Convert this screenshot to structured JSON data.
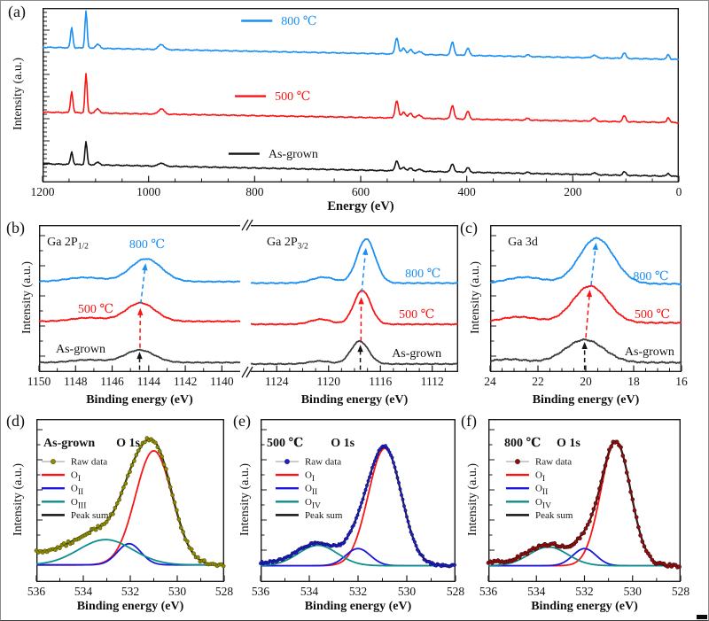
{
  "window": {
    "background": "#ffffff",
    "border_color": "#8a8a8a"
  },
  "colors": {
    "blue": "#1b8ff2",
    "red": "#f91515",
    "black": "#141414",
    "gray": "#3d3d3d",
    "teal": "#0e8d8d",
    "comp_blue": "#1717dd",
    "olive": "#8e8e00",
    "navy": "#2222cc",
    "darkred": "#8a1111"
  },
  "chart_data": [
    {
      "key": "a",
      "type": "line",
      "panel_letter": "(a)",
      "xlabel": "Energy (eV)",
      "ylabel": "Intensity (a.u.)",
      "x_range": [
        1200,
        0
      ],
      "x_ticks": [
        1200,
        1000,
        800,
        600,
        400,
        200,
        0
      ],
      "x_minor": 50,
      "frame": "full",
      "yticks": "dense",
      "lw": 1.6,
      "peaks": [
        [
          1145,
          2.2,
          0.115
        ],
        [
          1118,
          2.0,
          0.215
        ],
        [
          1096,
          4,
          0.022
        ],
        [
          976,
          5,
          0.03
        ],
        [
          532,
          3,
          0.095
        ],
        [
          519,
          3.5,
          0.034
        ],
        [
          506,
          3.5,
          0.026
        ],
        [
          490,
          5,
          0.016
        ],
        [
          427,
          3,
          0.075
        ],
        [
          398,
          3,
          0.042
        ],
        [
          285,
          3,
          0.01
        ],
        [
          160,
          4,
          0.016
        ],
        [
          103,
          3,
          0.032
        ],
        [
          20,
          2.5,
          0.028
        ]
      ],
      "series": [
        {
          "name": "800 ℃",
          "color": "blue",
          "baseline": 0.225,
          "slope": 0.07,
          "noise": 0.0035,
          "scale": 1.0,
          "seed": 11
        },
        {
          "name": "500 ℃",
          "color": "red",
          "baseline": 0.597,
          "slope": 0.06,
          "noise": 0.0035,
          "scale": 1.05,
          "seed": 23
        },
        {
          "name": "As-grown",
          "color": "black",
          "baseline": 0.893,
          "slope": 0.072,
          "noise": 0.0035,
          "scale": 0.62,
          "seed": 41
        }
      ],
      "labels": [
        {
          "fx": 0.375,
          "fy": 0.0965,
          "text": "800 ℃",
          "color": "blue",
          "anchor": "start",
          "seg": true
        },
        {
          "fx": 0.365,
          "fy": 0.528,
          "text": "500 ℃",
          "color": "red",
          "anchor": "start",
          "seg": true
        },
        {
          "fx": 0.355,
          "fy": 0.858,
          "text": "As-grown",
          "color": "black",
          "anchor": "start",
          "seg": true
        }
      ]
    },
    {
      "key": "b_left",
      "type": "line",
      "panel_letter": "(b)",
      "xlabel": "Binding energy (eV)",
      "ylabel": "Intensity (a.u.)",
      "x_range": [
        1150,
        1139
      ],
      "x_ticks": [
        1150,
        1148,
        1146,
        1144,
        1142,
        1140
      ],
      "x_minor": 1,
      "frame": "noRight",
      "break_right": true,
      "yticks": "sparse",
      "lw": 1.8,
      "series": [
        {
          "name": "800 ℃",
          "color": "blue",
          "baseline": 0.385,
          "noise": 0.004,
          "seed": 5,
          "peaks": [
            [
              1144.15,
              0.85,
              0.155
            ],
            [
              1147.5,
              1.0,
              0.028
            ]
          ]
        },
        {
          "name": "500 ℃",
          "color": "red",
          "baseline": 0.655,
          "noise": 0.004,
          "seed": 9,
          "peaks": [
            [
              1144.45,
              0.8,
              0.125
            ],
            [
              1147.3,
              0.9,
              0.024
            ]
          ]
        },
        {
          "name": "As-grown",
          "color": "gray",
          "baseline": 0.935,
          "noise": 0.004,
          "seed": 13,
          "peaks": [
            [
              1144.5,
              0.8,
              0.085
            ],
            [
              1147.3,
              0.9,
              0.018
            ]
          ]
        }
      ],
      "labels": [
        {
          "fx": 0.04,
          "fy": 0.138,
          "text": "Ga 2P",
          "sub": "1/2",
          "color": "black",
          "anchor": "start"
        },
        {
          "fx": 0.537,
          "fy": 0.157,
          "text": "800 ℃",
          "color": "blue"
        },
        {
          "fx": 0.282,
          "fy": 0.596,
          "text": "500 ℃",
          "color": "red"
        },
        {
          "fx": 0.207,
          "fy": 0.867,
          "text": "As-grown",
          "color": "black"
        }
      ],
      "arrows": [
        {
          "x1": 1144.5,
          "fy1": 0.985,
          "x2": 1144.5,
          "fy2": 0.862,
          "color": "black"
        },
        {
          "x1": 1144.48,
          "fy1": 0.835,
          "x2": 1144.46,
          "fy2": 0.565,
          "color": "red"
        },
        {
          "x1": 1144.44,
          "fy1": 0.535,
          "x2": 1144.17,
          "fy2": 0.26,
          "color": "blue"
        }
      ]
    },
    {
      "key": "b_right",
      "type": "line",
      "xlabel": "Binding energy (eV)",
      "x_range": [
        1126,
        1110
      ],
      "x_ticks": [
        1124,
        1120,
        1116,
        1112
      ],
      "x_minor": 1,
      "frame": "noLeft",
      "lw": 1.8,
      "series": [
        {
          "name": "800 ℃",
          "color": "blue",
          "baseline": 0.395,
          "noise": 0.004,
          "seed": 6,
          "peaks": [
            [
              1117.1,
              0.7,
              0.3
            ],
            [
              1120.4,
              0.9,
              0.04
            ]
          ]
        },
        {
          "name": "500 ℃",
          "color": "red",
          "baseline": 0.675,
          "noise": 0.004,
          "seed": 10,
          "peaks": [
            [
              1117.4,
              0.65,
              0.23
            ],
            [
              1120.6,
              0.8,
              0.034
            ]
          ]
        },
        {
          "name": "As-grown",
          "color": "gray",
          "baseline": 0.945,
          "noise": 0.004,
          "seed": 14,
          "peaks": [
            [
              1117.6,
              0.68,
              0.155
            ],
            [
              1120.7,
              0.8,
              0.02
            ]
          ]
        }
      ],
      "labels": [
        {
          "fx": 0.077,
          "fy": 0.138,
          "text": "Ga 2P",
          "sub": "3/2",
          "color": "black",
          "anchor": "start"
        },
        {
          "fx": 0.83,
          "fy": 0.355,
          "text": "800 ℃",
          "color": "blue"
        },
        {
          "fx": 0.8,
          "fy": 0.632,
          "text": "500 ℃",
          "color": "red"
        },
        {
          "fx": 0.8,
          "fy": 0.898,
          "text": "As-grown",
          "color": "black"
        }
      ],
      "arrows": [
        {
          "x1": 1117.55,
          "fy1": 0.985,
          "x2": 1117.55,
          "fy2": 0.815,
          "color": "black"
        },
        {
          "x1": 1117.5,
          "fy1": 0.79,
          "x2": 1117.48,
          "fy2": 0.49,
          "color": "red"
        },
        {
          "x1": 1117.45,
          "fy1": 0.46,
          "x2": 1117.12,
          "fy2": 0.155,
          "color": "blue"
        }
      ]
    },
    {
      "key": "c",
      "type": "line",
      "panel_letter": "(c)",
      "xlabel": "Binding energy (eV)",
      "ylabel": "Intensity (a.u.)",
      "x_range": [
        24,
        16
      ],
      "x_ticks": [
        24,
        22,
        20,
        18,
        16
      ],
      "x_minor": 0.5,
      "frame": "full",
      "yticks": "sparse",
      "lw": 1.8,
      "series": [
        {
          "name": "800 ℃",
          "color": "blue",
          "baseline": 0.4,
          "noise": 0.005,
          "seed": 7,
          "peaks": [
            [
              19.55,
              0.72,
              0.31
            ],
            [
              22.55,
              0.8,
              0.045
            ]
          ]
        },
        {
          "name": "500 ℃",
          "color": "red",
          "baseline": 0.665,
          "noise": 0.005,
          "seed": 12,
          "peaks": [
            [
              19.82,
              0.72,
              0.25
            ],
            [
              22.8,
              0.8,
              0.04
            ]
          ]
        },
        {
          "name": "As-grown",
          "color": "gray",
          "baseline": 0.935,
          "noise": 0.006,
          "seed": 19,
          "peaks": [
            [
              20.05,
              0.8,
              0.155
            ],
            [
              23.2,
              0.7,
              0.022
            ]
          ]
        }
      ],
      "labels": [
        {
          "fx": 0.093,
          "fy": 0.138,
          "text": "Ga 3d",
          "color": "black",
          "anchor": "start"
        },
        {
          "fx": 0.84,
          "fy": 0.373,
          "text": "800 ℃",
          "color": "blue"
        },
        {
          "fx": 0.847,
          "fy": 0.632,
          "text": "500 ℃",
          "color": "red"
        },
        {
          "fx": 0.833,
          "fy": 0.885,
          "text": "As-grown",
          "color": "black"
        }
      ],
      "arrows": [
        {
          "x1": 20.05,
          "fy1": 0.985,
          "x2": 20.05,
          "fy2": 0.795,
          "color": "black"
        },
        {
          "x1": 20.0,
          "fy1": 0.765,
          "x2": 19.83,
          "fy2": 0.44,
          "color": "red"
        },
        {
          "x1": 19.78,
          "fy1": 0.41,
          "x2": 19.57,
          "fy2": 0.12,
          "color": "blue"
        }
      ]
    },
    {
      "key": "d",
      "type": "line",
      "panel_letter": "(d)",
      "xlabel": "Binding energy (eV)",
      "ylabel": "Intensity (a.u.)",
      "x_range": [
        536,
        528
      ],
      "x_ticks": [
        536,
        534,
        532,
        530,
        528
      ],
      "x_minor": 1,
      "frame": "full",
      "yticks": "sparse",
      "baseline": 0.895,
      "bg_amp": 0.075,
      "bg_center": 531.7,
      "bg_width": 0.6,
      "components": [
        {
          "text": "O",
          "sub": "I",
          "color": "red",
          "peak": [
            531.0,
            0.78,
            0.7
          ]
        },
        {
          "text": "O",
          "sub": "II",
          "color": "comp_blue",
          "peak": [
            532.05,
            0.5,
            0.13
          ]
        },
        {
          "text": "O",
          "sub": "III",
          "color": "teal",
          "peak": [
            533.05,
            1.15,
            0.155
          ]
        }
      ],
      "sum_label": "Peak sum",
      "raw": {
        "label": "Raw data",
        "color": "olive",
        "edge": "#4f4c08",
        "step": 2.4,
        "r": 2.0,
        "noise": 0.012,
        "seed": 3
      },
      "labels": [
        {
          "fx": 0.038,
          "fy": 0.168,
          "text": "As-grown",
          "color": "black",
          "anchor": "start",
          "bold": true
        },
        {
          "fx": 0.425,
          "fy": 0.168,
          "text": "O 1s",
          "color": "black",
          "anchor": "start",
          "bold": true
        }
      ],
      "legend": {
        "fx": 0.028,
        "fy": 0.28,
        "row": 0.082
      }
    },
    {
      "key": "e",
      "type": "line",
      "panel_letter": "(e)",
      "xlabel": "Binding energy (eV)",
      "ylabel": "Intensity (a.u.)",
      "x_range": [
        536,
        528
      ],
      "x_ticks": [
        536,
        534,
        532,
        530,
        528
      ],
      "x_minor": 1,
      "frame": "full",
      "yticks": "sparse",
      "baseline": 0.9,
      "bg_amp": 0.018,
      "bg_center": 532.5,
      "bg_width": 0.8,
      "components": [
        {
          "text": "O",
          "sub": "I",
          "color": "red",
          "peak": [
            530.9,
            0.68,
            0.72
          ]
        },
        {
          "text": "O",
          "sub": "II",
          "color": "comp_blue",
          "peak": [
            532.0,
            0.5,
            0.105
          ]
        },
        {
          "text": "O",
          "sub": "IV",
          "color": "teal",
          "peak": [
            533.65,
            0.8,
            0.125
          ]
        }
      ],
      "sum_label": "Peak sum",
      "raw": {
        "label": "Raw data",
        "color": "navy",
        "edge": "#0d0d70",
        "step": 1.5,
        "r": 1.6,
        "noise": 0.007,
        "seed": 8
      },
      "labels": [
        {
          "fx": 0.032,
          "fy": 0.168,
          "text": "500 ℃",
          "color": "black",
          "anchor": "start",
          "bold": true
        },
        {
          "fx": 0.36,
          "fy": 0.168,
          "text": "O 1s",
          "color": "black",
          "anchor": "start",
          "bold": true
        }
      ],
      "legend": {
        "fx": 0.077,
        "fy": 0.28,
        "row": 0.082
      }
    },
    {
      "key": "f",
      "type": "line",
      "panel_letter": "(f)",
      "xlabel": "Binding energy (eV)",
      "ylabel": "Intensity (a.u.)",
      "x_range": [
        536,
        528
      ],
      "x_ticks": [
        536,
        534,
        532,
        530,
        528
      ],
      "x_minor": 1,
      "frame": "full",
      "yticks": "sparse",
      "baseline": 0.9,
      "bg_amp": 0.02,
      "bg_center": 532.5,
      "bg_width": 0.8,
      "components": [
        {
          "text": "O",
          "sub": "I",
          "color": "red",
          "peak": [
            530.7,
            0.62,
            0.76
          ]
        },
        {
          "text": "O",
          "sub": "II",
          "color": "comp_blue",
          "peak": [
            532.0,
            0.48,
            0.105
          ]
        },
        {
          "text": "O",
          "sub": "IV",
          "color": "teal",
          "peak": [
            533.5,
            0.8,
            0.115
          ]
        }
      ],
      "sum_label": "Peak sum",
      "raw": {
        "label": "Raw data",
        "color": "darkred",
        "edge": "#4d0606",
        "step": 2.2,
        "r": 2.0,
        "noise": 0.01,
        "seed": 15
      },
      "labels": [
        {
          "fx": 0.083,
          "fy": 0.168,
          "text": "800 ℃",
          "color": "black",
          "anchor": "start",
          "bold": true
        },
        {
          "fx": 0.355,
          "fy": 0.168,
          "text": "O 1s",
          "color": "black",
          "anchor": "start",
          "bold": true
        }
      ],
      "legend": {
        "fx": 0.092,
        "fy": 0.28,
        "row": 0.082
      }
    }
  ]
}
